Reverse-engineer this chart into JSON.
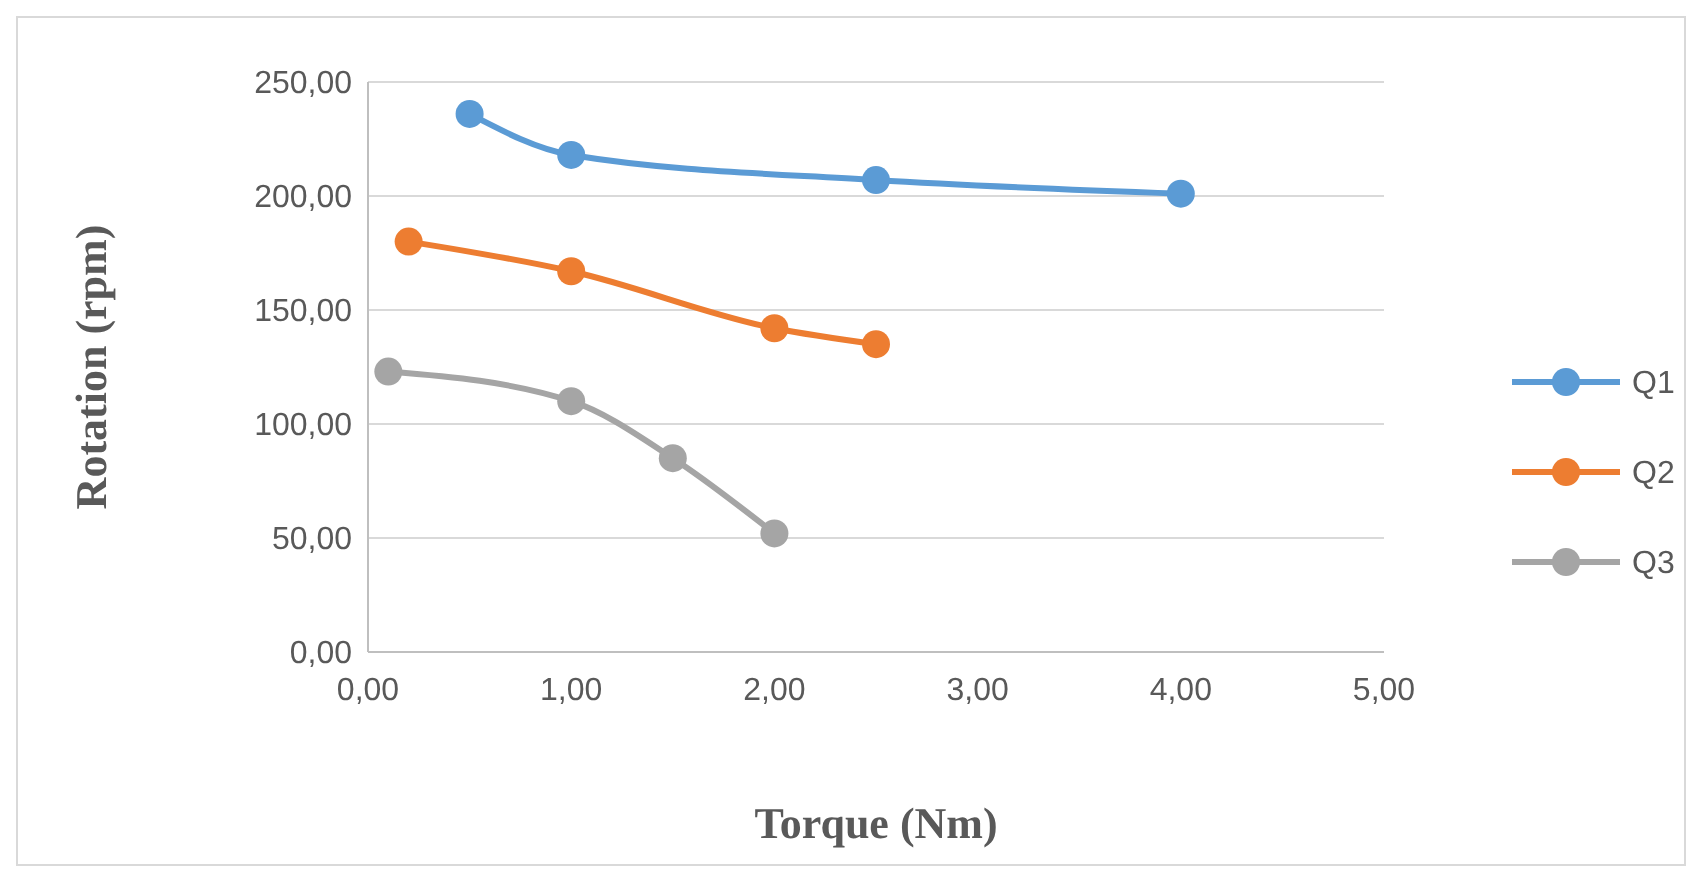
{
  "chart_data": {
    "type": "line",
    "xlabel": "Torque (Nm)",
    "ylabel": "Rotation (rpm)",
    "xlim": [
      0,
      5
    ],
    "xticks": [
      {
        "value": 0,
        "label": "0,00"
      },
      {
        "value": 1,
        "label": "1,00"
      },
      {
        "value": 2,
        "label": "2,00"
      },
      {
        "value": 3,
        "label": "3,00"
      },
      {
        "value": 4,
        "label": "4,00"
      },
      {
        "value": 5,
        "label": "5,00"
      }
    ],
    "ylim": [
      0,
      250
    ],
    "yticks": [
      {
        "value": 0,
        "label": "0,00"
      },
      {
        "value": 50,
        "label": "50,00"
      },
      {
        "value": 100,
        "label": "100,00"
      },
      {
        "value": 150,
        "label": "150,00"
      },
      {
        "value": 200,
        "label": "200,00"
      },
      {
        "value": 250,
        "label": "250,00"
      }
    ],
    "grid": "y",
    "legend": "right",
    "marker": "circle",
    "series": [
      {
        "name": "Q1",
        "color": "#5b9bd5",
        "x": [
          0.5,
          1,
          2.5,
          4
        ],
        "values": [
          236,
          218,
          207,
          201
        ]
      },
      {
        "name": "Q2",
        "color": "#ed7d31",
        "x": [
          0.2,
          1,
          2,
          2.5
        ],
        "values": [
          180,
          167,
          142,
          135
        ]
      },
      {
        "name": "Q3",
        "color": "#a5a5a5",
        "x": [
          0.1,
          1,
          1.5,
          2
        ],
        "values": [
          123,
          110,
          85,
          52
        ]
      }
    ]
  }
}
